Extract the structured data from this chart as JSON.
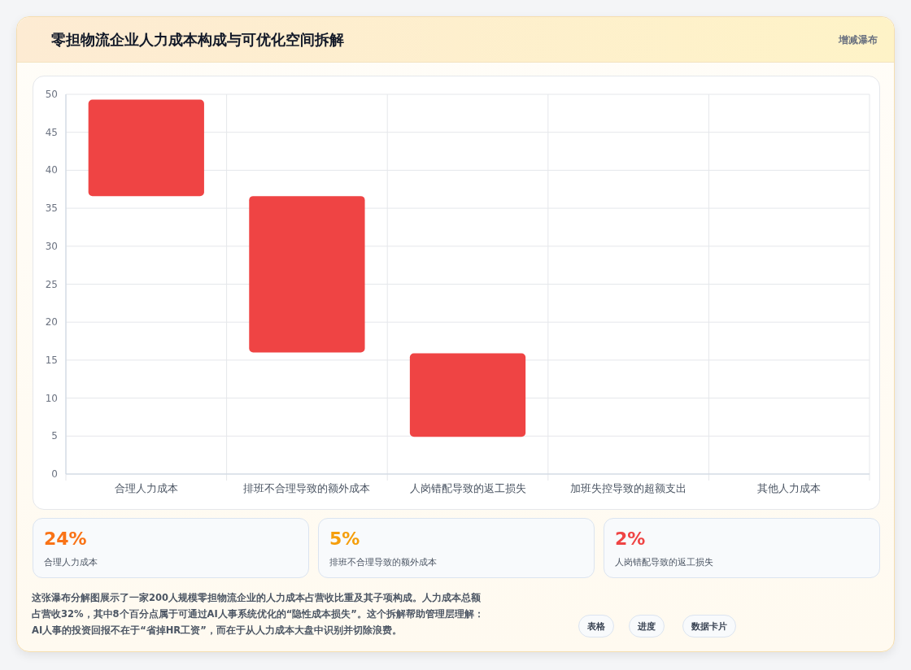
{
  "chart_data": [
    {
      "type": "bar",
      "title": "零担物流企业人力成本构成与可优化空间拆解",
      "subtitle": "增减瀑布",
      "categories": [
        "合理人力成本",
        "排班不合理导致的额外成本",
        "人岗错配导致的返工损失",
        "加班失控导致的超额支出",
        "其他人力成本"
      ],
      "values": [
        12.7,
        20.6,
        11.0,
        null,
        null
      ],
      "base": [
        36.6,
        16.0,
        4.9,
        null,
        null
      ],
      "colors": [
        "#ef4444",
        "#ef4444",
        "#ef4444",
        null,
        null
      ],
      "ylim": [
        0,
        50
      ],
      "yticks": [
        0,
        5,
        10,
        15,
        20,
        25,
        30,
        35,
        40,
        45,
        50
      ],
      "grid": true,
      "annotations": [
        "这张瀑布分解图展示了一家200人规模零担物流企业的人力成本占营收比重及其子项构成。人力成本总额占营收32%，其中8个百分点属于可通过AI人事系统优化的“隐性成本损失”。这个拆解帮助管理层理解：AI人事的投资回报不在于“省掉HR工资”，而在于从人力成本大盘中识别并切除浪费。"
      ]
    },
    {
      "type": "other",
      "annotations": [
        "24%",
        "合理人力成本",
        "5%",
        "排班不合理导致的额外成本",
        "2%",
        "人岗错配导致的返工损失",
        "表格",
        "进度",
        "数据卡片"
      ]
    }
  ]
}
